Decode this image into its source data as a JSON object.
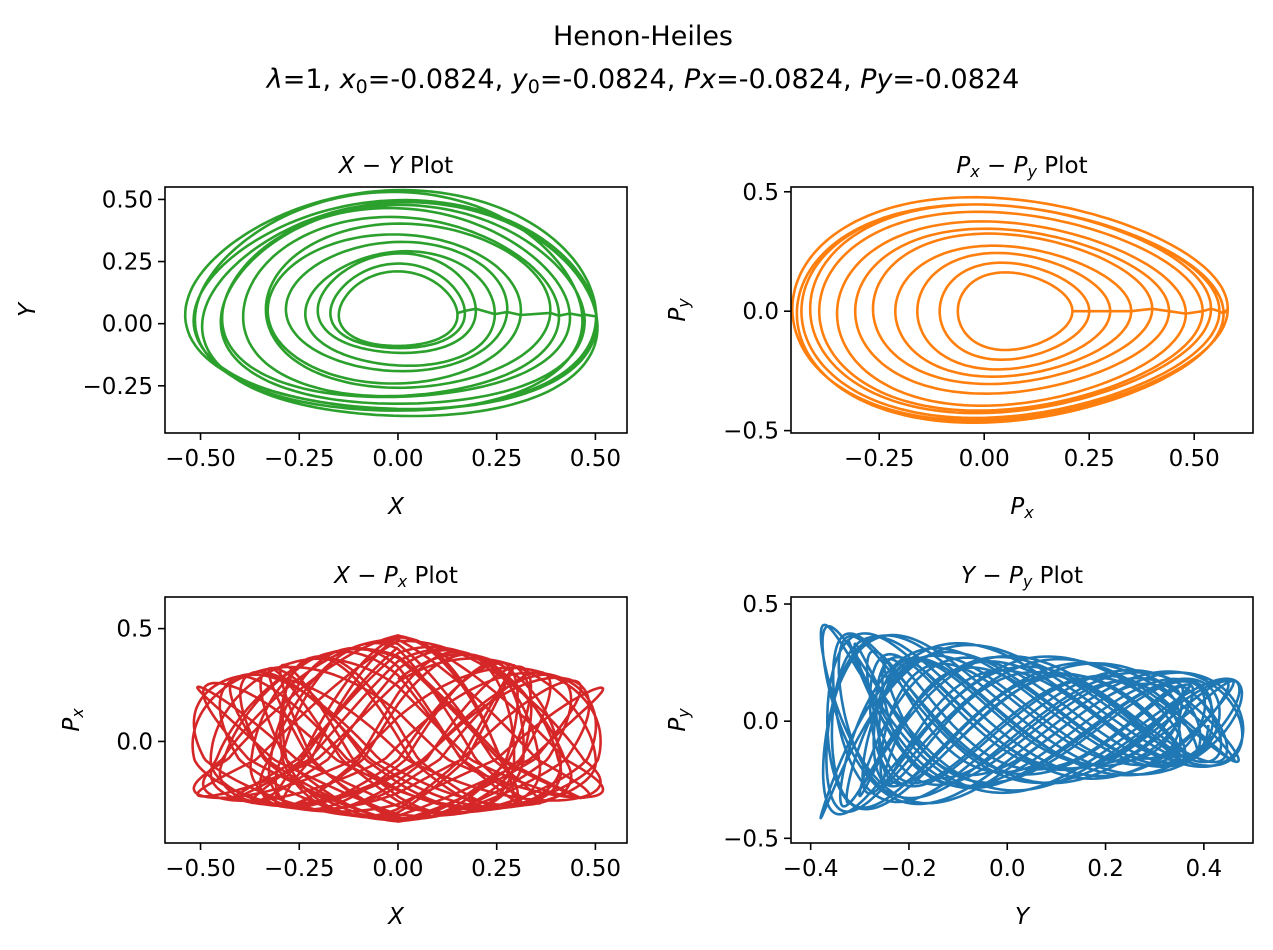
{
  "figure": {
    "title": "Henon-Heiles",
    "subtitle_parts": [
      {
        "t": "λ",
        "i": true
      },
      {
        "t": "=1, "
      },
      {
        "t": "x",
        "i": true
      },
      {
        "t": "0",
        "sub": true
      },
      {
        "t": "=-0.0824, "
      },
      {
        "t": "y",
        "i": true
      },
      {
        "t": "0",
        "sub": true
      },
      {
        "t": "=-0.0824, "
      },
      {
        "t": "Px",
        "i": true
      },
      {
        "t": "=-0.0824, "
      },
      {
        "t": "Py",
        "i": true
      },
      {
        "t": "=-0.0824"
      }
    ]
  },
  "chart_data": [
    {
      "type": "line",
      "title_parts": [
        {
          "t": "X",
          "i": true
        },
        {
          "t": " − "
        },
        {
          "t": "Y",
          "i": true
        },
        {
          "t": " Plot"
        }
      ],
      "xlabel_parts": [
        {
          "t": "X",
          "i": true
        }
      ],
      "ylabel_parts": [
        {
          "t": "Y",
          "i": true
        }
      ],
      "xlim": [
        -0.59,
        0.58
      ],
      "ylim": [
        -0.44,
        0.55
      ],
      "xticks": [
        -0.5,
        -0.25,
        0.0,
        0.25,
        0.5
      ],
      "xtick_labels": [
        "−0.50",
        "−0.25",
        "0.00",
        "0.25",
        "0.50"
      ],
      "yticks": [
        -0.25,
        0.0,
        0.25,
        0.5
      ],
      "ytick_labels": [
        "−0.25",
        "0.00",
        "0.25",
        "0.50"
      ],
      "color": "#2ca02c",
      "trajectory": {
        "kind": "loops",
        "cx": 0.0,
        "cy": 0.05,
        "loops": [
          [
            0.52,
            0.44,
            -0.01,
            0.02
          ],
          [
            0.5,
            0.43,
            0.01,
            -0.02
          ],
          [
            0.51,
            0.42,
            0.0,
            0.0
          ],
          [
            0.49,
            0.44,
            -0.02,
            0.01
          ],
          [
            0.46,
            0.4,
            0.01,
            0.0
          ],
          [
            0.44,
            0.38,
            -0.01,
            0.01
          ],
          [
            0.4,
            0.36,
            0.0,
            0.0
          ],
          [
            0.36,
            0.33,
            0.02,
            0.01
          ],
          [
            0.32,
            0.3,
            -0.01,
            0.0
          ],
          [
            0.28,
            0.26,
            0.0,
            0.01
          ],
          [
            0.24,
            0.23,
            0.01,
            0.0
          ],
          [
            0.2,
            0.2,
            0.0,
            0.02
          ],
          [
            0.17,
            0.17,
            0.0,
            0.01
          ],
          [
            0.15,
            0.15,
            0.0,
            0.0
          ]
        ]
      }
    },
    {
      "type": "line",
      "title_parts": [
        {
          "t": "P",
          "i": true
        },
        {
          "t": "x",
          "i": true,
          "sub": true
        },
        {
          "t": " − "
        },
        {
          "t": "P",
          "i": true
        },
        {
          "t": "y",
          "i": true,
          "sub": true
        },
        {
          "t": " Plot"
        }
      ],
      "xlabel_parts": [
        {
          "t": "P",
          "i": true
        },
        {
          "t": "x",
          "i": true,
          "sub": true
        }
      ],
      "ylabel_parts": [
        {
          "t": "P",
          "i": true
        },
        {
          "t": "y",
          "i": true,
          "sub": true
        }
      ],
      "xlim": [
        -0.46,
        0.64
      ],
      "ylim": [
        -0.51,
        0.52
      ],
      "xticks": [
        -0.25,
        0.0,
        0.25,
        0.5
      ],
      "xtick_labels": [
        "−0.25",
        "0.00",
        "0.25",
        "0.50"
      ],
      "yticks": [
        -0.5,
        0.0,
        0.5
      ],
      "ytick_labels": [
        "−0.5",
        "0.0",
        "0.5"
      ],
      "color": "#ff7f0e",
      "trajectory": {
        "kind": "egg",
        "cx": 0.08,
        "cy": 0.0,
        "loops": [
          [
            0.5,
            0.46,
            0.01
          ],
          [
            0.49,
            0.45,
            -0.01
          ],
          [
            0.48,
            0.44,
            0.0
          ],
          [
            0.46,
            0.43,
            0.01
          ],
          [
            0.44,
            0.41,
            0.0
          ],
          [
            0.4,
            0.38,
            -0.01
          ],
          [
            0.36,
            0.34,
            0.0
          ],
          [
            0.32,
            0.31,
            0.01
          ],
          [
            0.27,
            0.27,
            0.0
          ],
          [
            0.22,
            0.24,
            0.0
          ],
          [
            0.17,
            0.2,
            0.0
          ],
          [
            0.13,
            0.16,
            0.0
          ]
        ]
      }
    },
    {
      "type": "line",
      "title_parts": [
        {
          "t": "X",
          "i": true
        },
        {
          "t": " − "
        },
        {
          "t": "P",
          "i": true
        },
        {
          "t": "x",
          "i": true,
          "sub": true
        },
        {
          "t": " Plot"
        }
      ],
      "xlabel_parts": [
        {
          "t": "X",
          "i": true
        }
      ],
      "ylabel_parts": [
        {
          "t": "P",
          "i": true
        },
        {
          "t": "x",
          "i": true,
          "sub": true
        }
      ],
      "xlim": [
        -0.59,
        0.58
      ],
      "ylim": [
        -0.45,
        0.64
      ],
      "xticks": [
        -0.5,
        -0.25,
        0.0,
        0.25,
        0.5
      ],
      "xtick_labels": [
        "−0.50",
        "−0.25",
        "0.00",
        "0.25",
        "0.50"
      ],
      "yticks": [
        0.0,
        0.5
      ],
      "ytick_labels": [
        "0.0",
        "0.5"
      ],
      "color": "#d62728",
      "trajectory": {
        "kind": "lissajous",
        "ax": 0.52,
        "ay": 0.55,
        "fx": 1.0,
        "fy": 1.618,
        "phase": 0.7,
        "turns": 26,
        "center": [
          0.0,
          0.0
        ]
      }
    },
    {
      "type": "line",
      "title_parts": [
        {
          "t": "Y",
          "i": true
        },
        {
          "t": " − "
        },
        {
          "t": "P",
          "i": true
        },
        {
          "t": "y",
          "i": true,
          "sub": true
        },
        {
          "t": " Plot"
        }
      ],
      "xlabel_parts": [
        {
          "t": "Y",
          "i": true
        }
      ],
      "ylabel_parts": [
        {
          "t": "P",
          "i": true
        },
        {
          "t": "y",
          "i": true,
          "sub": true
        }
      ],
      "xlim": [
        -0.44,
        0.5
      ],
      "ylim": [
        -0.52,
        0.53
      ],
      "xticks": [
        -0.4,
        -0.2,
        0.0,
        0.2,
        0.4
      ],
      "xtick_labels": [
        "−0.4",
        "−0.2",
        "0.0",
        "0.2",
        "0.4"
      ],
      "yticks": [
        -0.5,
        0.0,
        0.5
      ],
      "ytick_labels": [
        "−0.5",
        "0.0",
        "0.5"
      ],
      "color": "#1f77b4",
      "trajectory": {
        "kind": "petal",
        "cx": 0.05,
        "turns": 24
      }
    }
  ]
}
